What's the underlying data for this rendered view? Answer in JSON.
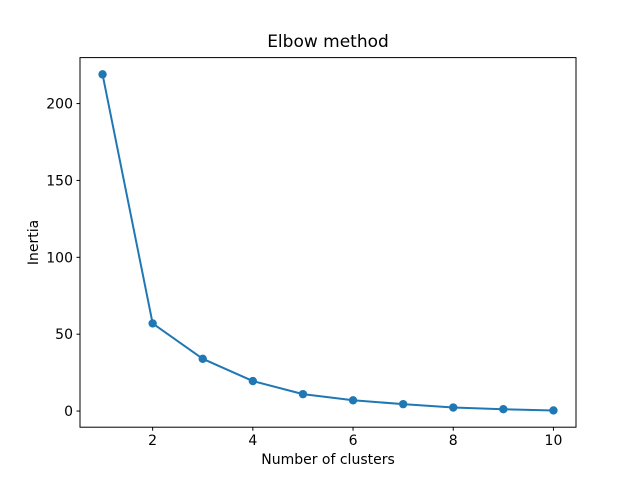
{
  "chart_data": {
    "type": "line",
    "title": "Elbow method",
    "xlabel": "Number of clusters",
    "ylabel": "Inertia",
    "x": [
      1,
      2,
      3,
      4,
      5,
      6,
      7,
      8,
      9,
      10
    ],
    "values": [
      219,
      57,
      34,
      19.5,
      11,
      7,
      4.5,
      2.3,
      1.2,
      0.4
    ],
    "xticks": [
      2,
      4,
      6,
      8,
      10
    ],
    "yticks": [
      0,
      50,
      100,
      150,
      200
    ],
    "xlim": [
      0.55,
      10.45
    ],
    "ylim": [
      -10.5,
      229.9
    ],
    "grid": false,
    "legend": false,
    "marker": "circle",
    "series_color": "#1f77b4",
    "background_color": "#ffffff",
    "axis_color": "#000000"
  }
}
